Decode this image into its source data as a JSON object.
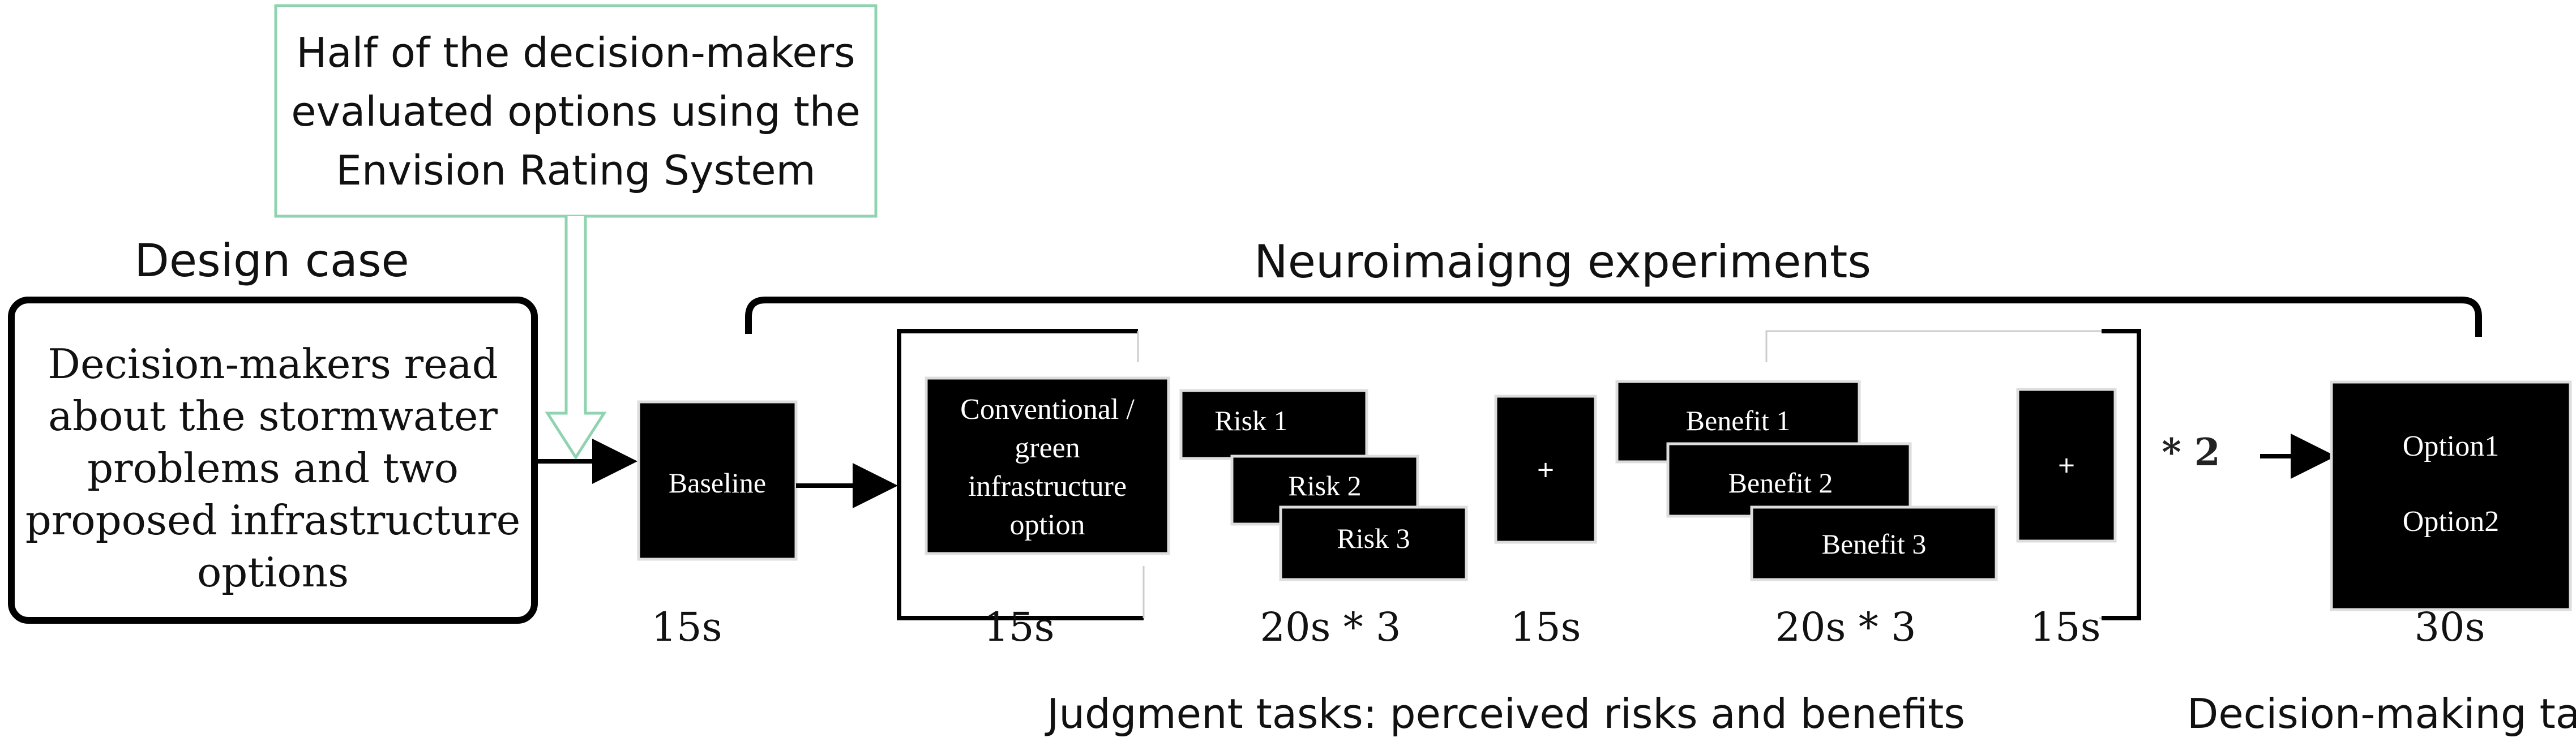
{
  "callout": {
    "lines": [
      "Half of the decision-makers",
      "evaluated options using the",
      "Envision Rating System"
    ],
    "border_color": "#8fd3b0"
  },
  "design_case": {
    "title": "Design case",
    "lines": [
      "Decision-makers read",
      "about the stormwater",
      "problems and two",
      "proposed infrastructure",
      "options"
    ]
  },
  "experiments": {
    "title": "Neuroimaigng experiments"
  },
  "stages": {
    "baseline": {
      "label": "Baseline",
      "time": "15s"
    },
    "option": {
      "lines": [
        "Conventional /",
        "green",
        "infrastructure",
        "option"
      ],
      "time": "15s"
    },
    "risks": {
      "labels": [
        "Risk  1",
        "Risk 2",
        "Risk 3"
      ],
      "time": "20s * 3"
    },
    "fixation1": {
      "label": "+",
      "time": "15s"
    },
    "benefits": {
      "labels": [
        "Benefit 1",
        "Benefit 2",
        "Benefit 3"
      ],
      "time": "20s * 3"
    },
    "fixation2": {
      "label": "+",
      "time": "15s"
    },
    "repeat": "* 2",
    "decision": {
      "lines": [
        "Option1",
        "Option2"
      ],
      "time": "30s"
    }
  },
  "captions": {
    "judgment": "Judgment tasks: perceived risks and benefits",
    "decision": "Decision-making task"
  },
  "colors": {
    "box_fill": "#000000",
    "box_border": "#dddddd",
    "text_dark": "#111111",
    "text_light": "#ffffff",
    "line": "#000000"
  }
}
